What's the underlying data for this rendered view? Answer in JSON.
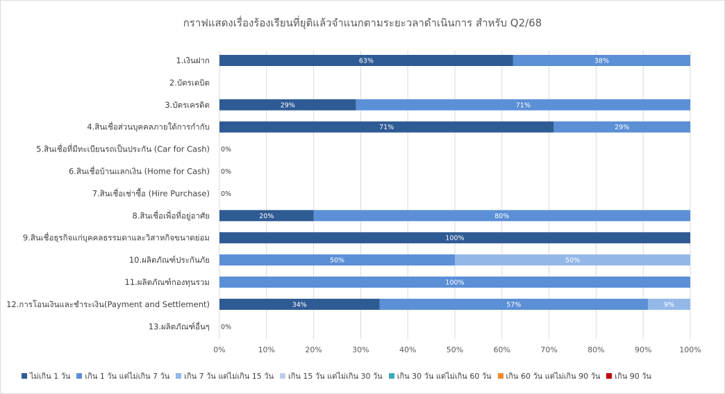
{
  "chart_data": {
    "type": "bar",
    "orientation": "horizontal",
    "stacked": "percent",
    "title": "กราฟแสดงเรื่องร้องเรียนที่ยุติแล้วจำแนกตามระยะวลาดำเนินการ สำหรับ Q2/68",
    "categories": [
      "1.เงินฝาก",
      "2.บัตรเดบิต",
      "3.บัตรเครดิต",
      "4.สินเชื่อส่วนบุคคลภายใต้การกำกับ",
      "5.สินเชื่อที่มีทะเบียนรถเป็นประกัน  (Car for Cash)",
      "6.สินเชื่อบ้านแลกเงิน  (Home for Cash)",
      "7.สินเชื่อเช่าซื้อ  (Hire Purchase)",
      "8.สินเชื่อเพื่อที่อยู่อาศัย",
      "9.สินเชื่อธุรกิจแก่บุคคลธรรมดาและวิสาหกิจขนาดย่อม",
      "10.ผลิตภัณฑ์ประกันภัย",
      "11.ผลิตภัณฑ์กองทุนรวม",
      "12.การโอนเงินและชำระเงิน(Payment  and Settlement)",
      "13.ผลิตภัณฑ์อื่นๆ"
    ],
    "series": [
      {
        "name": "ไม่เกิน 1 วัน",
        "color": "#2f5b94",
        "values": [
          63,
          0,
          29,
          71,
          0,
          0,
          0,
          20,
          100,
          0,
          0,
          34,
          0
        ],
        "labels": [
          "63%",
          null,
          "29%",
          "71%",
          "0%",
          "0%",
          "0%",
          "20%",
          "100%",
          null,
          null,
          "34%",
          "0%"
        ]
      },
      {
        "name": "เกิน 1 วัน แต่ไม่เกิน 7 วัน",
        "color": "#5b8fd6",
        "values": [
          38,
          0,
          71,
          29,
          0,
          0,
          0,
          80,
          0,
          50,
          100,
          57,
          0
        ],
        "labels": [
          "38%",
          null,
          "71%",
          "29%",
          null,
          null,
          null,
          "80%",
          null,
          "50%",
          "100%",
          "57%",
          null
        ]
      },
      {
        "name": "เกิน 7 วัน แต่ไม่เกิน 15 วัน",
        "color": "#93b8e8",
        "values": [
          0,
          0,
          0,
          0,
          0,
          0,
          0,
          0,
          0,
          50,
          0,
          9,
          0
        ],
        "labels": [
          null,
          null,
          null,
          null,
          null,
          null,
          null,
          null,
          null,
          "50%",
          null,
          "9%",
          null
        ]
      },
      {
        "name": "เกิน 15 วัน แต่ไม่เกิน 30 วัน",
        "color": "#bccfe9",
        "values": [
          0,
          0,
          0,
          0,
          0,
          0,
          0,
          0,
          0,
          0,
          0,
          0,
          0
        ],
        "labels": []
      },
      {
        "name": "เกิน 30 วัน แต่ไม่เกิน 60 วัน",
        "color": "#3aaab8",
        "values": [
          0,
          0,
          0,
          0,
          0,
          0,
          0,
          0,
          0,
          0,
          0,
          0,
          0
        ],
        "labels": []
      },
      {
        "name": "เกิน 60 วัน แต่ไม่เกิน 90 วัน",
        "color": "#ed8a33",
        "values": [
          0,
          0,
          0,
          0,
          0,
          0,
          0,
          0,
          0,
          0,
          0,
          0,
          0
        ],
        "labels": []
      },
      {
        "name": "เกิน 90 วัน",
        "color": "#c00000",
        "values": [
          0,
          0,
          0,
          0,
          0,
          0,
          0,
          0,
          0,
          0,
          0,
          0,
          0
        ],
        "labels": []
      }
    ],
    "xlim": [
      0,
      100
    ],
    "xticks": [
      "0%",
      "10%",
      "20%",
      "30%",
      "40%",
      "50%",
      "60%",
      "70%",
      "80%",
      "90%",
      "100%"
    ],
    "grid": "vertical",
    "legend_position": "bottom"
  }
}
